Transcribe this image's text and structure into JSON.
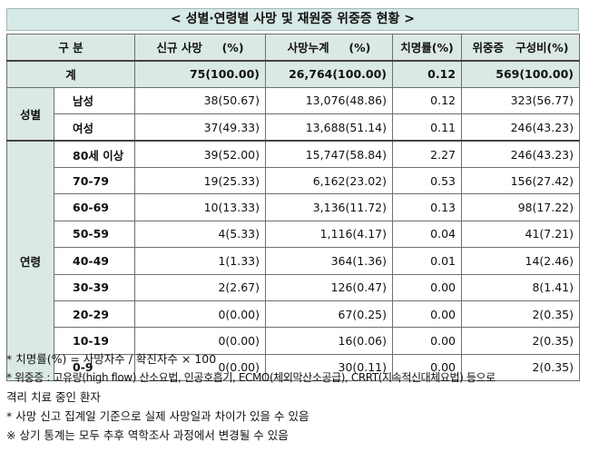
{
  "title": "< 성별·연령별 사망 및 재원중 위중증 현황 >",
  "headers": {
    "category": "구 분",
    "new_deaths": "신규 사망     (%)",
    "cum_deaths": "사망누계     (%)",
    "fatality": "치명률(%)",
    "severe": "위중증   구성비(%)"
  },
  "total": {
    "label": "계",
    "new_deaths": "75(100.00)",
    "cum_deaths": "26,764(100.00)",
    "fatality": "0.12",
    "severe": "569(100.00)"
  },
  "groups": [
    {
      "label": "성별",
      "rows": [
        {
          "label": "남성",
          "new_deaths": "38(50.67)",
          "cum_deaths": "13,076(48.86)",
          "fatality": "0.12",
          "severe": "323(56.77)"
        },
        {
          "label": "여성",
          "new_deaths": "37(49.33)",
          "cum_deaths": "13,688(51.14)",
          "fatality": "0.11",
          "severe": "246(43.23)"
        }
      ]
    },
    {
      "label": "연령",
      "rows": [
        {
          "label": "80세 이상",
          "new_deaths": "39(52.00)",
          "cum_deaths": "15,747(58.84)",
          "fatality": "2.27",
          "severe": "246(43.23)"
        },
        {
          "label": "70-79",
          "new_deaths": "19(25.33)",
          "cum_deaths": "6,162(23.02)",
          "fatality": "0.53",
          "severe": "156(27.42)"
        },
        {
          "label": "60-69",
          "new_deaths": "10(13.33)",
          "cum_deaths": "3,136(11.72)",
          "fatality": "0.13",
          "severe": "98(17.22)"
        },
        {
          "label": "50-59",
          "new_deaths": "4(5.33)",
          "cum_deaths": "1,116(4.17)",
          "fatality": "0.04",
          "severe": "41(7.21)"
        },
        {
          "label": "40-49",
          "new_deaths": "1(1.33)",
          "cum_deaths": "364(1.36)",
          "fatality": "0.01",
          "severe": "14(2.46)"
        },
        {
          "label": "30-39",
          "new_deaths": "2(2.67)",
          "cum_deaths": "126(0.47)",
          "fatality": "0.00",
          "severe": "8(1.41)"
        },
        {
          "label": "20-29",
          "new_deaths": "0(0.00)",
          "cum_deaths": "67(0.25)",
          "fatality": "0.00",
          "severe": "2(0.35)"
        },
        {
          "label": "10-19",
          "new_deaths": "0(0.00)",
          "cum_deaths": "16(0.06)",
          "fatality": "0.00",
          "severe": "2(0.35)"
        },
        {
          "label": "0-9",
          "new_deaths": "0(0.00)",
          "cum_deaths": "30(0.11)",
          "fatality": "0.00",
          "severe": "2(0.35)"
        }
      ]
    }
  ],
  "notes": [
    "* 치명률(%) = 사망자수 / 확진자수 × 100",
    "* 위중증 : 고유량(high flow) 산소요법, 인공호흡기, ECMO(체외막산소공급), CRRT(지속적신대체요법) 등으로",
    "격리 치료 중인 환자",
    "* 사망 신고 집계일 기준으로 실제 사망일과 차이가 있을 수 있음",
    "※ 상기 통계는 모두 추후 역학조사 과정에서 변경될 수 있음"
  ]
}
